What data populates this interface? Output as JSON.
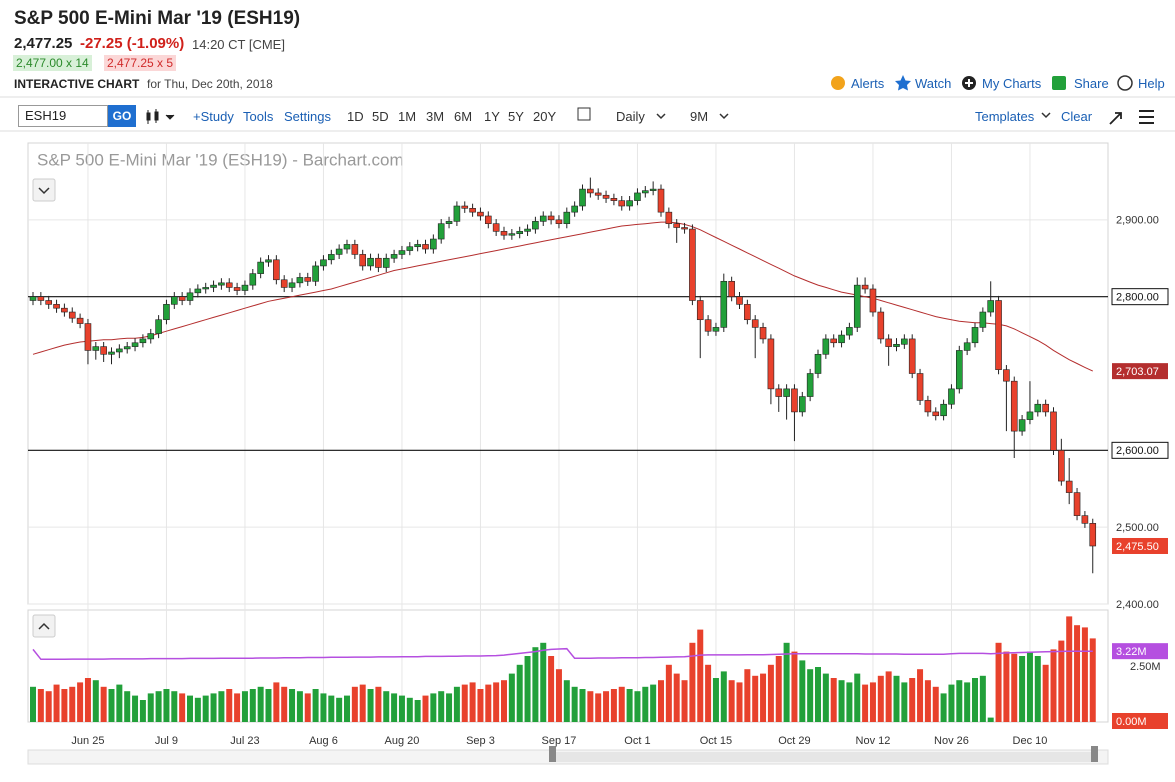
{
  "header": {
    "title": "S&P 500 E-Mini Mar '19 (ESH19)",
    "last": "2,477.25",
    "change": "-27.25 (-1.09%)",
    "time": "14:20 CT [CME]",
    "bid": "2,477.00 x 14",
    "ask": "2,477.25 x 5",
    "chart_label": "INTERACTIVE CHART",
    "chart_date": "for Thu, Dec 20th, 2018",
    "links": [
      "Alerts",
      "Watch",
      "My Charts",
      "Share",
      "Help"
    ]
  },
  "toolbar": {
    "symbol": "ESH19",
    "go": "GO",
    "items": [
      "+Study",
      "Tools",
      "Settings"
    ],
    "periods": [
      "1D",
      "5D",
      "1M",
      "3M",
      "6M",
      "1Y",
      "5Y",
      "20Y"
    ],
    "interval": "Daily",
    "range": "9M",
    "templates": "Templates",
    "clear": "Clear"
  },
  "chart_data": {
    "type": "candlestick",
    "title": "S&P 500 E-Mini Mar '19 (ESH19) - Barchart.com",
    "categories": [
      null,
      null,
      null,
      null,
      null,
      null,
      null,
      "Jun 25",
      null,
      null,
      null,
      null,
      null,
      null,
      null,
      null,
      null,
      "Jul 9",
      null,
      null,
      null,
      null,
      null,
      null,
      null,
      null,
      null,
      "Jul 23",
      null,
      null,
      null,
      null,
      null,
      null,
      null,
      null,
      null,
      "Aug 6",
      null,
      null,
      null,
      null,
      null,
      null,
      null,
      null,
      null,
      "Aug 20",
      null,
      null,
      null,
      null,
      null,
      null,
      null,
      null,
      null,
      "Sep 3",
      null,
      null,
      null,
      null,
      null,
      null,
      null,
      null,
      null,
      "Sep 17",
      null,
      null,
      null,
      null,
      null,
      null,
      null,
      null,
      null,
      "Oct 1",
      null,
      null,
      null,
      null,
      null,
      null,
      null,
      null,
      null,
      "Oct 15",
      null,
      null,
      null,
      null,
      null,
      null,
      null,
      null,
      null,
      "Oct 29",
      null,
      null,
      null,
      null,
      null,
      null,
      null,
      null,
      null,
      "Nov 12",
      null,
      null,
      null,
      null,
      null,
      null,
      null,
      null,
      null,
      "Nov 26",
      null,
      null,
      null,
      null,
      null,
      null,
      null,
      null,
      null,
      "Dec 10",
      null,
      null,
      null,
      null,
      null,
      null,
      null,
      null
    ],
    "open": [
      2795,
      2800,
      2795,
      2790,
      2785,
      2780,
      2772,
      2765,
      2730,
      2735,
      2725,
      2728,
      2732,
      2735,
      2740,
      2745,
      2752,
      2770,
      2790,
      2800,
      2795,
      2805,
      2810,
      2812,
      2815,
      2818,
      2812,
      2808,
      2815,
      2830,
      2845,
      2848,
      2822,
      2812,
      2818,
      2825,
      2820,
      2840,
      2848,
      2855,
      2862,
      2868,
      2855,
      2840,
      2850,
      2838,
      2850,
      2855,
      2860,
      2865,
      2868,
      2862,
      2875,
      2895,
      2898,
      2918,
      2915,
      2910,
      2905,
      2895,
      2885,
      2880,
      2882,
      2885,
      2888,
      2898,
      2905,
      2900,
      2895,
      2910,
      2918,
      2940,
      2935,
      2932,
      2928,
      2925,
      2918,
      2925,
      2935,
      2938,
      2940,
      2910,
      2895,
      2890,
      2888,
      2795,
      2770,
      2755,
      2760,
      2820,
      2800,
      2790,
      2770,
      2760,
      2745,
      2680,
      2670,
      2680,
      2650,
      2670,
      2700,
      2725,
      2745,
      2740,
      2750,
      2760,
      2815,
      2810,
      2780,
      2745,
      2735,
      2738,
      2745,
      2700,
      2665,
      2650,
      2645,
      2660,
      2680,
      2730,
      2740,
      2760,
      2780,
      2795,
      2705,
      2690,
      2625,
      2640,
      2650,
      2660,
      2650,
      2600,
      2560,
      2545,
      2515,
      2505
    ],
    "high": [
      2806,
      2806,
      2801,
      2796,
      2791,
      2786,
      2778,
      2771,
      2741,
      2741,
      2734,
      2738,
      2741,
      2746,
      2751,
      2758,
      2776,
      2796,
      2806,
      2806,
      2811,
      2816,
      2818,
      2821,
      2824,
      2824,
      2818,
      2821,
      2836,
      2851,
      2854,
      2854,
      2828,
      2824,
      2831,
      2831,
      2846,
      2854,
      2861,
      2868,
      2874,
      2874,
      2861,
      2856,
      2856,
      2856,
      2861,
      2866,
      2871,
      2874,
      2874,
      2881,
      2901,
      2904,
      2924,
      2924,
      2921,
      2916,
      2911,
      2901,
      2891,
      2888,
      2891,
      2894,
      2904,
      2911,
      2911,
      2906,
      2916,
      2924,
      2946,
      2955,
      2941,
      2938,
      2934,
      2931,
      2931,
      2941,
      2944,
      2950,
      2946,
      2916,
      2901,
      2896,
      2894,
      2801,
      2776,
      2766,
      2830,
      2826,
      2806,
      2796,
      2776,
      2766,
      2751,
      2686,
      2686,
      2686,
      2676,
      2706,
      2731,
      2751,
      2751,
      2756,
      2766,
      2825,
      2825,
      2816,
      2786,
      2751,
      2746,
      2751,
      2751,
      2706,
      2671,
      2656,
      2666,
      2686,
      2736,
      2746,
      2766,
      2786,
      2820,
      2801,
      2711,
      2696,
      2646,
      2690,
      2666,
      2666,
      2656,
      2615,
      2590,
      2551,
      2521,
      2511
    ],
    "low": [
      2789,
      2789,
      2784,
      2779,
      2774,
      2766,
      2759,
      2712,
      2718,
      2715,
      2712,
      2720,
      2726,
      2729,
      2734,
      2739,
      2746,
      2764,
      2784,
      2789,
      2789,
      2799,
      2804,
      2806,
      2809,
      2806,
      2802,
      2802,
      2809,
      2824,
      2839,
      2816,
      2806,
      2806,
      2812,
      2814,
      2814,
      2834,
      2842,
      2849,
      2856,
      2849,
      2834,
      2834,
      2832,
      2832,
      2844,
      2849,
      2854,
      2859,
      2856,
      2856,
      2869,
      2889,
      2892,
      2909,
      2904,
      2899,
      2889,
      2879,
      2874,
      2874,
      2876,
      2879,
      2882,
      2892,
      2894,
      2889,
      2889,
      2904,
      2912,
      2929,
      2926,
      2922,
      2919,
      2912,
      2912,
      2919,
      2929,
      2932,
      2904,
      2889,
      2870,
      2882,
      2789,
      2720,
      2749,
      2749,
      2754,
      2794,
      2784,
      2764,
      2720,
      2739,
      2660,
      2650,
      2640,
      2612,
      2644,
      2664,
      2694,
      2719,
      2734,
      2734,
      2744,
      2754,
      2804,
      2774,
      2739,
      2710,
      2729,
      2732,
      2694,
      2659,
      2644,
      2639,
      2639,
      2654,
      2674,
      2724,
      2734,
      2754,
      2774,
      2699,
      2625,
      2590,
      2619,
      2634,
      2644,
      2644,
      2594,
      2554,
      2530,
      2509,
      2499,
      2440
    ],
    "close": [
      2800,
      2795,
      2790,
      2785,
      2780,
      2772,
      2765,
      2730,
      2735,
      2725,
      2728,
      2732,
      2735,
      2740,
      2745,
      2752,
      2770,
      2790,
      2800,
      2795,
      2805,
      2810,
      2812,
      2815,
      2818,
      2812,
      2808,
      2815,
      2830,
      2845,
      2848,
      2822,
      2812,
      2818,
      2825,
      2820,
      2840,
      2848,
      2855,
      2862,
      2868,
      2855,
      2840,
      2850,
      2838,
      2850,
      2855,
      2860,
      2865,
      2868,
      2862,
      2875,
      2895,
      2898,
      2918,
      2915,
      2910,
      2905,
      2895,
      2885,
      2880,
      2882,
      2885,
      2888,
      2898,
      2905,
      2900,
      2895,
      2910,
      2918,
      2940,
      2935,
      2932,
      2928,
      2925,
      2918,
      2925,
      2935,
      2938,
      2940,
      2910,
      2895,
      2890,
      2888,
      2795,
      2770,
      2755,
      2760,
      2820,
      2800,
      2790,
      2770,
      2760,
      2745,
      2680,
      2670,
      2680,
      2650,
      2670,
      2700,
      2725,
      2745,
      2740,
      2750,
      2760,
      2815,
      2810,
      2780,
      2745,
      2735,
      2738,
      2745,
      2700,
      2665,
      2650,
      2645,
      2660,
      2680,
      2730,
      2740,
      2760,
      2780,
      2795,
      2705,
      2690,
      2625,
      2640,
      2650,
      2660,
      2650,
      2600,
      2560,
      2545,
      2515,
      2505,
      2475.5
    ],
    "ma": [
      2725,
      2728,
      2731,
      2734,
      2737,
      2739,
      2741,
      2742,
      2743,
      2744,
      2744,
      2745,
      2746,
      2746,
      2747,
      2749,
      2752,
      2755,
      2758,
      2761,
      2764,
      2767,
      2770,
      2773,
      2776,
      2779,
      2782,
      2785,
      2788,
      2791,
      2794,
      2796,
      2798,
      2800,
      2802,
      2804,
      2806,
      2808,
      2810,
      2813,
      2816,
      2819,
      2822,
      2825,
      2828,
      2831,
      2834,
      2836,
      2838,
      2840,
      2842,
      2844,
      2846,
      2848,
      2850,
      2852,
      2854,
      2856,
      2858,
      2860,
      2862,
      2864,
      2866,
      2868,
      2870,
      2872,
      2874,
      2876,
      2878,
      2880,
      2882,
      2884,
      2886,
      2888,
      2890,
      2892,
      2893,
      2894,
      2895,
      2896,
      2897,
      2897,
      2896,
      2894,
      2891,
      2887,
      2882,
      2877,
      2872,
      2867,
      2862,
      2857,
      2852,
      2847,
      2842,
      2837,
      2832,
      2827,
      2823,
      2819,
      2815,
      2812,
      2809,
      2806,
      2804,
      2802,
      2800,
      2798,
      2795,
      2792,
      2789,
      2786,
      2783,
      2780,
      2777,
      2774,
      2772,
      2770,
      2768,
      2767,
      2766,
      2766,
      2765,
      2764,
      2762,
      2758,
      2753,
      2748,
      2743,
      2737,
      2730,
      2724,
      2718,
      2713,
      2708,
      2703.07
    ],
    "ma_flag": "2,703.07",
    "close_flag": "2,475.50",
    "volume": [
      1.6,
      1.5,
      1.4,
      1.7,
      1.5,
      1.6,
      1.8,
      2.0,
      1.9,
      1.6,
      1.5,
      1.7,
      1.4,
      1.2,
      1.0,
      1.3,
      1.4,
      1.5,
      1.4,
      1.3,
      1.2,
      1.1,
      1.2,
      1.3,
      1.4,
      1.5,
      1.3,
      1.4,
      1.5,
      1.6,
      1.5,
      1.8,
      1.6,
      1.5,
      1.4,
      1.3,
      1.5,
      1.3,
      1.2,
      1.1,
      1.2,
      1.6,
      1.7,
      1.5,
      1.6,
      1.4,
      1.3,
      1.2,
      1.1,
      1.0,
      1.2,
      1.3,
      1.4,
      1.3,
      1.6,
      1.7,
      1.8,
      1.5,
      1.7,
      1.8,
      1.9,
      2.2,
      2.6,
      3.0,
      3.4,
      3.6,
      3.0,
      2.4,
      1.9,
      1.6,
      1.5,
      1.4,
      1.3,
      1.4,
      1.5,
      1.6,
      1.5,
      1.4,
      1.6,
      1.7,
      1.9,
      2.6,
      2.2,
      1.9,
      3.6,
      4.2,
      2.6,
      2.0,
      2.3,
      1.9,
      1.8,
      2.4,
      2.1,
      2.2,
      2.6,
      3.0,
      3.6,
      3.2,
      2.8,
      2.4,
      2.5,
      2.2,
      2.0,
      1.9,
      1.8,
      2.2,
      1.7,
      1.8,
      2.1,
      2.3,
      2.1,
      1.8,
      2.0,
      2.4,
      1.9,
      1.6,
      1.3,
      1.7,
      1.9,
      1.8,
      2.0,
      2.1,
      0.2,
      3.6,
      3.2,
      3.1,
      3.0,
      3.2,
      3.0,
      2.6,
      3.3,
      3.7,
      4.8,
      4.4,
      4.3,
      3.8
    ],
    "volume_ma": [
      3.3,
      2.85,
      2.85,
      2.85,
      2.85,
      2.86,
      2.86,
      2.86,
      2.86,
      2.86,
      2.87,
      2.87,
      2.87,
      2.87,
      2.87,
      2.88,
      2.88,
      2.88,
      2.88,
      2.88,
      2.89,
      2.89,
      2.89,
      2.89,
      2.9,
      2.9,
      2.9,
      2.9,
      2.9,
      2.91,
      2.91,
      2.91,
      2.92,
      2.92,
      2.92,
      2.93,
      2.93,
      2.93,
      2.94,
      2.94,
      2.94,
      2.95,
      2.95,
      2.95,
      2.96,
      2.96,
      2.96,
      2.97,
      2.97,
      2.97,
      2.98,
      2.98,
      2.98,
      2.99,
      2.99,
      3.0,
      3.0,
      3.0,
      3.01,
      3.02,
      3.04,
      3.08,
      3.12,
      3.16,
      3.2,
      3.26,
      3.3,
      3.32,
      3.33,
      2.9,
      2.9,
      2.9,
      2.91,
      2.91,
      2.91,
      2.92,
      2.92,
      2.92,
      2.93,
      2.93,
      2.94,
      2.95,
      2.96,
      2.97,
      3.0,
      3.04,
      3.05,
      3.05,
      3.05,
      3.05,
      3.05,
      3.06,
      3.06,
      3.06,
      3.07,
      3.08,
      3.09,
      3.1,
      3.1,
      3.1,
      3.1,
      3.1,
      3.1,
      3.1,
      3.1,
      3.1,
      3.09,
      3.09,
      3.09,
      3.09,
      3.09,
      3.08,
      3.08,
      3.08,
      3.08,
      3.08,
      3.08,
      3.1,
      3.12,
      3.12,
      3.12,
      3.12,
      3.1,
      3.12,
      3.14,
      3.15,
      3.16,
      3.17,
      3.18,
      3.19,
      3.2,
      3.21,
      3.22,
      3.22,
      3.22,
      3.22
    ],
    "volume_ma_flag": "3.22M",
    "ylim": [
      2400,
      3000
    ],
    "yticks": [
      {
        "value": 2900,
        "label": "2,900.00"
      },
      {
        "value": 2800,
        "label": "2,800.00"
      },
      {
        "value": 2600,
        "label": "2,600.00"
      },
      {
        "value": 2500,
        "label": "2,500.00"
      },
      {
        "value": 2400,
        "label": "2,400.00"
      }
    ],
    "hlines": [
      2800,
      2600
    ],
    "volume_ylim": [
      0,
      5
    ],
    "volume_yticks": [
      {
        "value": 2.5,
        "label": "2.50M"
      },
      {
        "value": 0,
        "label": "0.00M"
      }
    ],
    "up_color": "#22a03a",
    "down_color": "#e8412c",
    "ma_color": "#b42e2e",
    "volume_ma_color": "#b54fe0",
    "grid": true
  }
}
